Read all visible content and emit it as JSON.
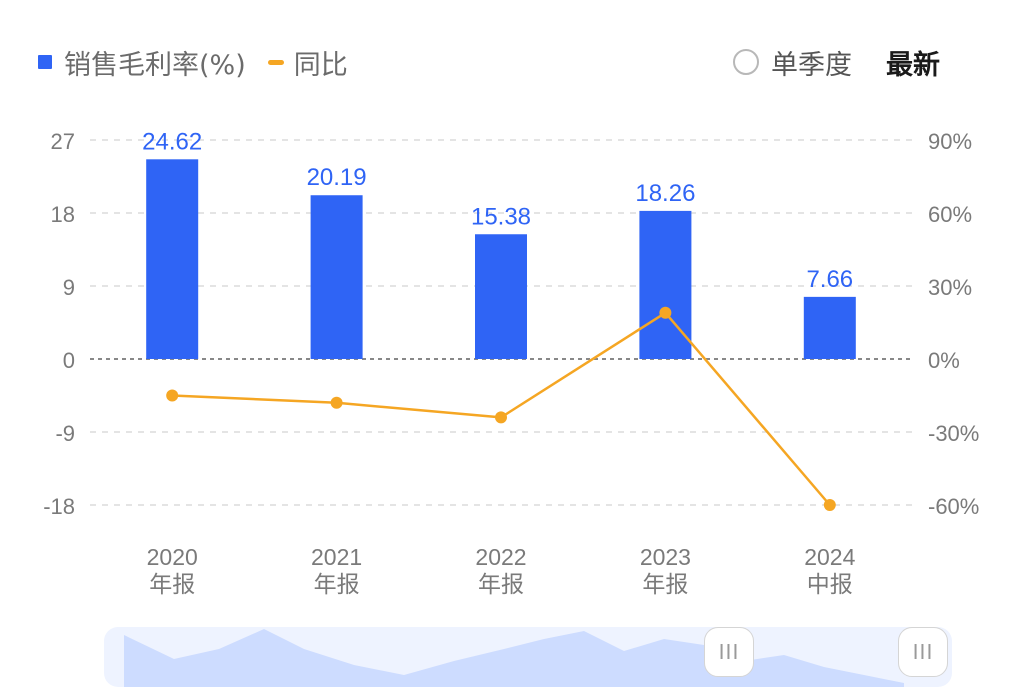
{
  "legend": {
    "bar_label": "销售毛利率(%)",
    "line_label": "同比"
  },
  "controls": {
    "quarter_label": "单季度",
    "latest_label": "最新"
  },
  "navigator": {
    "handle_glyph": "III"
  },
  "colors": {
    "bar": "#2f64f5",
    "line": "#f5a623",
    "axis_text": "#7a7a7a",
    "grid": "#dcdcdc"
  },
  "chart_data": {
    "type": "bar",
    "categories": [
      [
        "2020",
        "年报"
      ],
      [
        "2021",
        "年报"
      ],
      [
        "2022",
        "年报"
      ],
      [
        "2023",
        "年报"
      ],
      [
        "2024",
        "中报"
      ]
    ],
    "series": [
      {
        "name": "销售毛利率(%)",
        "type": "bar",
        "axis": "left",
        "values": [
          24.62,
          20.19,
          15.38,
          18.26,
          7.66
        ],
        "labels": [
          "24.62",
          "20.19",
          "15.38",
          "18.26",
          "7.66"
        ]
      },
      {
        "name": "同比",
        "type": "line",
        "axis": "right",
        "values": [
          -15,
          -18,
          -24,
          19,
          -60
        ]
      }
    ],
    "left_axis": {
      "ylim": [
        -18,
        27
      ],
      "ticks": [
        27,
        18,
        9,
        0,
        -9,
        -18
      ],
      "tick_labels": [
        "27",
        "18",
        "9",
        "0",
        "-9",
        "-18"
      ]
    },
    "right_axis": {
      "ylim": [
        -60,
        90
      ],
      "ticks": [
        90,
        60,
        30,
        0,
        -30,
        -60
      ],
      "tick_labels": [
        "90%",
        "60%",
        "30%",
        "0%",
        "-30%",
        "-60%"
      ]
    },
    "grid": true,
    "legend_position": "top-left"
  }
}
